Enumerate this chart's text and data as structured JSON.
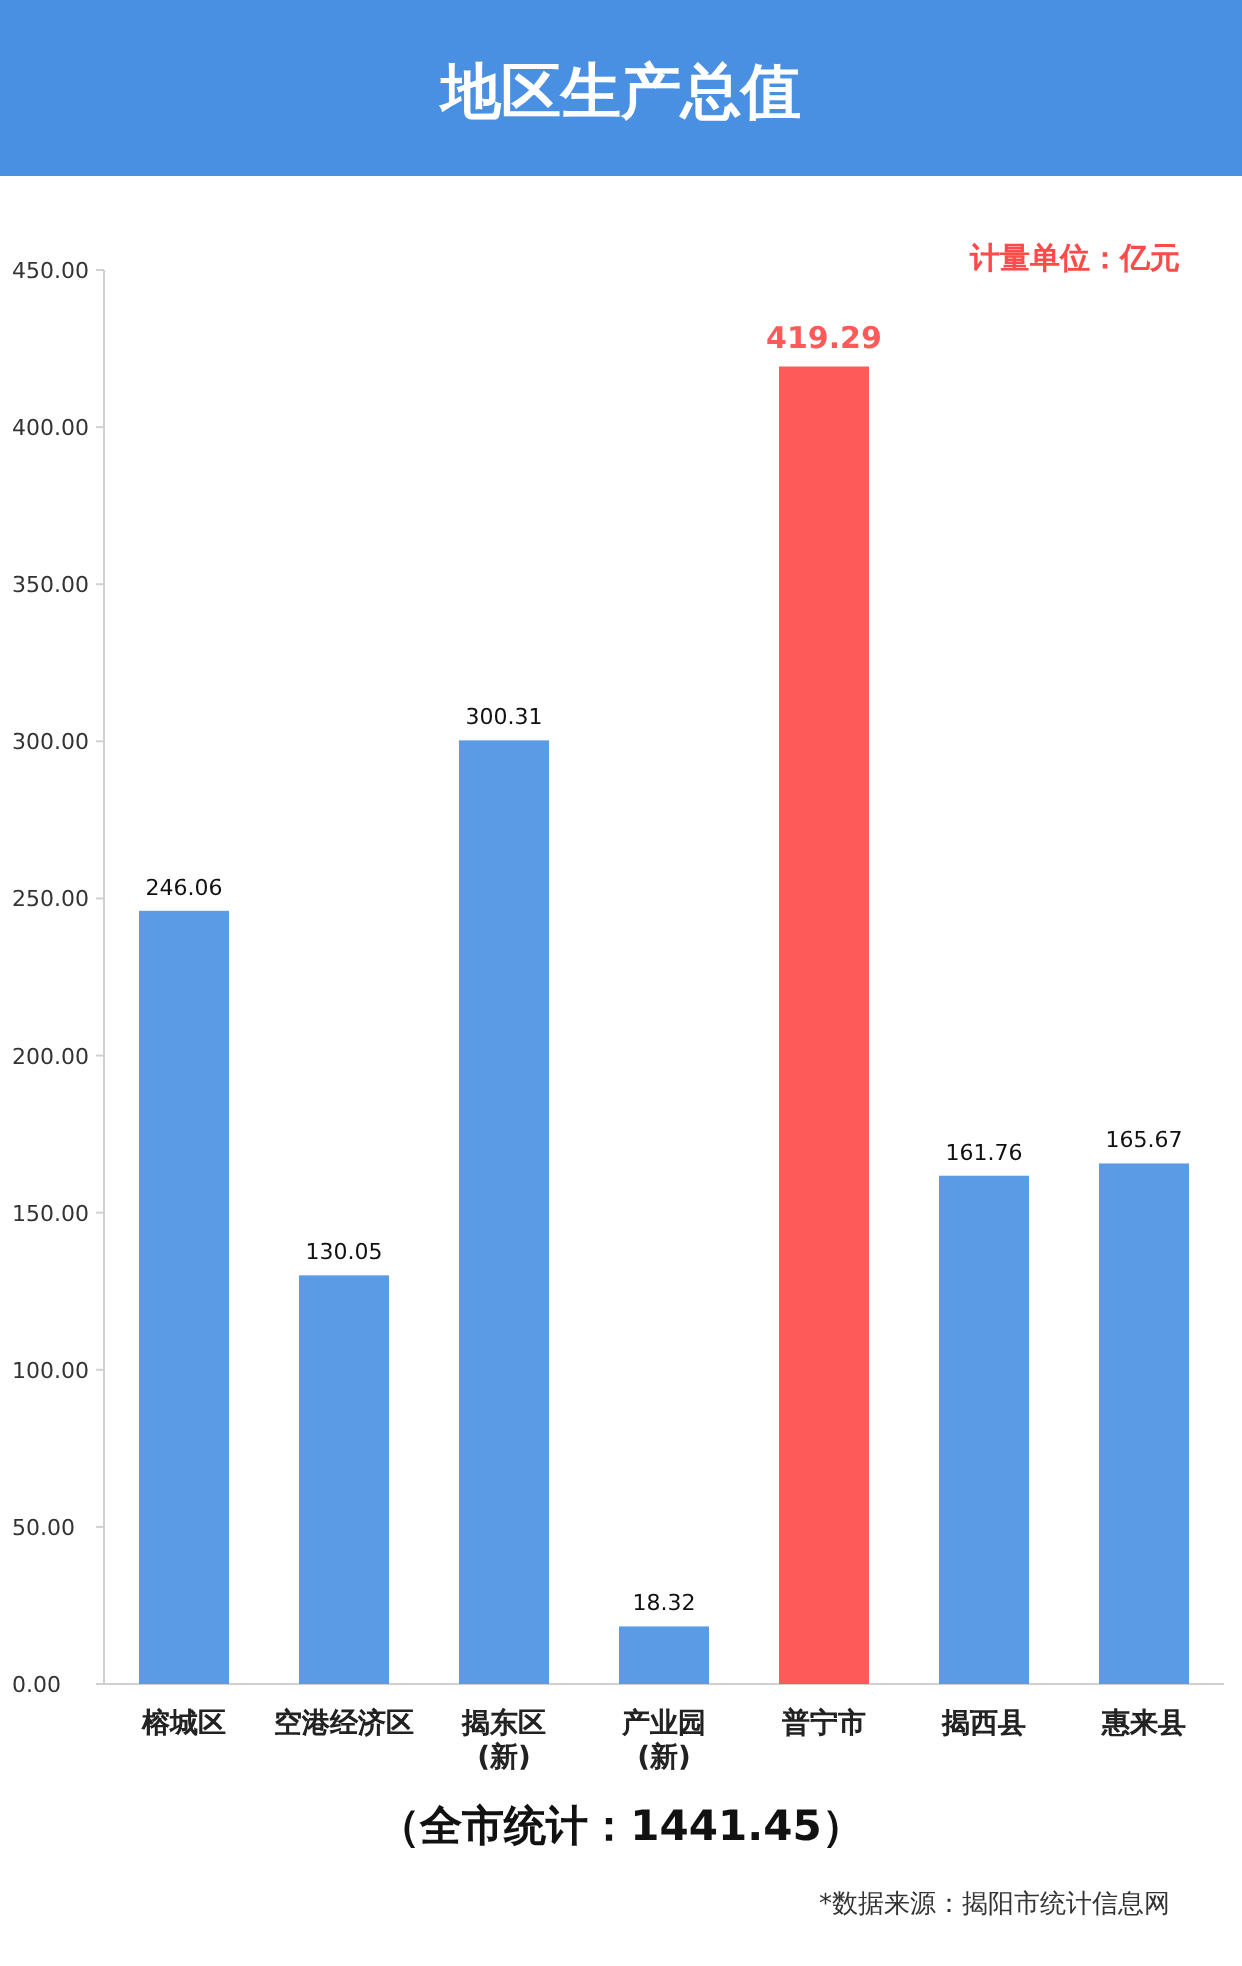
{
  "chart_data": {
    "type": "bar",
    "title": "地区生产总值",
    "categories": [
      "榕城区",
      "空港经济区",
      "揭东区\n(新)",
      "产业园\n(新)",
      "普宁市",
      "揭西县",
      "惠来县"
    ],
    "values": [
      246.06,
      130.05,
      300.31,
      18.32,
      419.29,
      161.76,
      165.67
    ],
    "colors": [
      "#5b9be6",
      "#5b9be6",
      "#5b9be6",
      "#5b9be6",
      "#ff5a5a",
      "#5b9be6",
      "#5b9be6"
    ],
    "ylim": [
      0,
      450
    ],
    "yticks": [
      {
        "value": 0,
        "label": "0.00"
      },
      {
        "value": 50,
        "label": "50.00"
      },
      {
        "value": 100,
        "label": "100.00"
      },
      {
        "value": 150,
        "label": "150.00"
      },
      {
        "value": 200,
        "label": "200.00"
      },
      {
        "value": 250,
        "label": "250.00"
      },
      {
        "value": 300,
        "label": "300.00"
      },
      {
        "value": 350,
        "label": "350.00"
      },
      {
        "value": 400,
        "label": "400.00"
      },
      {
        "value": 450,
        "label": "450.00"
      }
    ],
    "data_labels": true,
    "annotations": [
      "计量单位：亿元",
      "（全市统计：1441.45）",
      "*数据来源：揭阳市统计信息网"
    ]
  }
}
